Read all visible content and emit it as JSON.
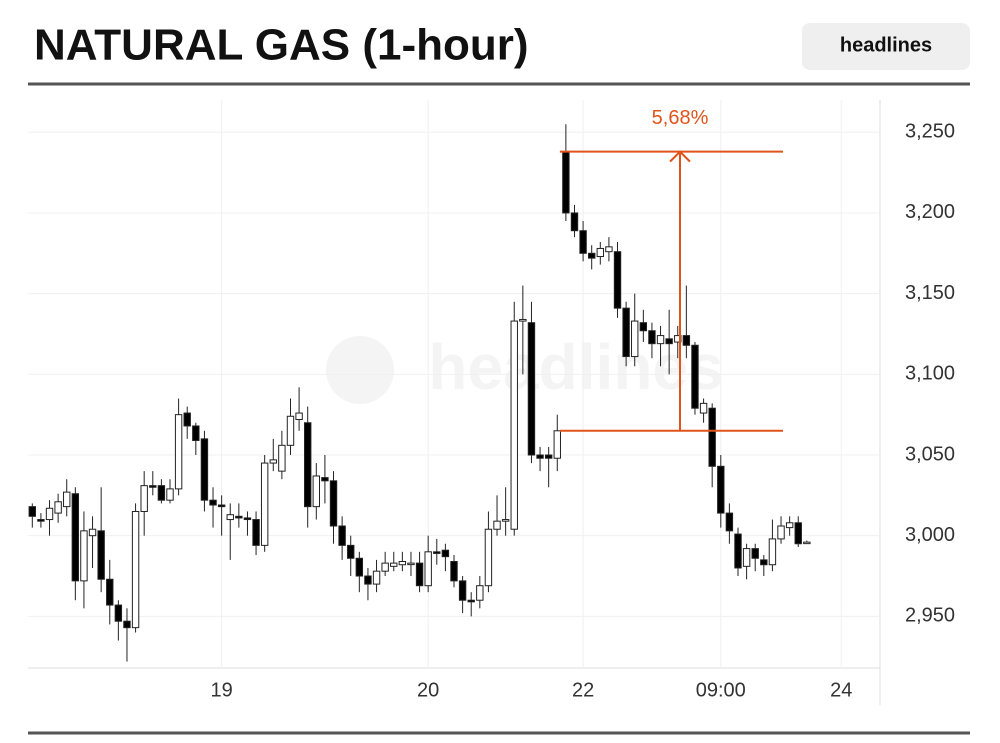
{
  "chart_data": {
    "type": "candlestick",
    "title": "NATURAL GAS (1-hour)",
    "button": "headlines",
    "watermark": "headlines",
    "categories": [
      null,
      null,
      null,
      null,
      null,
      null,
      null,
      null,
      null,
      null,
      null,
      null,
      null,
      null,
      null,
      null,
      null,
      null,
      null,
      null,
      null,
      null,
      "19",
      null,
      null,
      null,
      null,
      null,
      null,
      null,
      null,
      null,
      null,
      null,
      null,
      null,
      null,
      null,
      null,
      null,
      null,
      null,
      null,
      null,
      null,
      null,
      "20",
      null,
      null,
      null,
      null,
      null,
      null,
      null,
      null,
      null,
      null,
      null,
      null,
      null,
      null,
      null,
      null,
      null,
      "22",
      null,
      null,
      null,
      null,
      null,
      null,
      null,
      null,
      null,
      null,
      null,
      null,
      null,
      null,
      null,
      "09:00",
      null,
      null,
      null,
      null,
      null,
      null,
      null,
      null,
      null,
      null,
      null,
      null,
      null,
      "24",
      null,
      null,
      null,
      null
    ],
    "open": [
      3018,
      3010,
      3010,
      3014,
      3018,
      3026,
      2972,
      3000,
      3003,
      2973,
      2957,
      2947,
      2943,
      3015,
      3031,
      3031,
      3022,
      3029,
      3076,
      3068,
      3060,
      3022,
      3019,
      3010,
      3012,
      3011,
      3010,
      2994,
      3045,
      3040,
      3056,
      3072,
      3070,
      3018,
      3036,
      3034,
      3006,
      2994,
      2986,
      2975,
      2970,
      2978,
      2981,
      2982,
      2983,
      2983,
      2969,
      2990,
      2991,
      2984,
      2972,
      2960,
      2960,
      2969,
      3004,
      3009,
      3004,
      3133,
      3132,
      3050,
      3050,
      3048,
      3238,
      3200,
      3189,
      3175,
      3173,
      3176,
      3176,
      3141,
      3111,
      3132,
      3127,
      3119,
      3122,
      3120,
      3124,
      3118,
      3076,
      3079,
      3043,
      3014,
      3001,
      2981,
      2992,
      2985,
      2982,
      2998,
      3005,
      3008,
      2996,
      null,
      null,
      null,
      null,
      null,
      null,
      null,
      null
    ],
    "close": [
      3012,
      3009,
      3017,
      3021,
      3027,
      2972,
      3003,
      3004,
      2973,
      2957,
      2947,
      2943,
      3015,
      3031,
      3030,
      3022,
      3029,
      3075,
      3068,
      3059,
      3022,
      3019,
      3018,
      3013,
      3011,
      3010,
      2994,
      3045,
      3047,
      3056,
      3074,
      3076,
      3018,
      3037,
      3034,
      3006,
      2994,
      2986,
      2975,
      2970,
      2978,
      2983,
      2983,
      2984,
      2983,
      2969,
      2990,
      2989,
      2987,
      2972,
      2960,
      2959,
      2969,
      3004,
      3009,
      3010,
      3133,
      3134,
      3050,
      3048,
      3048,
      3065,
      3200,
      3189,
      3175,
      3172,
      3178,
      3179,
      3141,
      3111,
      3133,
      3127,
      3119,
      3124,
      3119,
      3124,
      3118,
      3079,
      3082,
      3043,
      3014,
      3003,
      2980,
      2992,
      2986,
      2982,
      2998,
      3006,
      3008,
      2995,
      2996,
      null,
      null,
      null,
      null,
      null,
      null,
      null,
      null
    ],
    "high": [
      3020,
      3014,
      3022,
      3026,
      3035,
      3030,
      3015,
      3012,
      3030,
      2985,
      2960,
      2955,
      3020,
      3040,
      3040,
      3035,
      3035,
      3085,
      3080,
      3070,
      3065,
      3030,
      3025,
      3020,
      3020,
      3015,
      3015,
      3050,
      3060,
      3065,
      3085,
      3092,
      3080,
      3045,
      3050,
      3040,
      3012,
      3000,
      2990,
      2980,
      2985,
      2990,
      2990,
      2990,
      2990,
      2990,
      3000,
      2998,
      2995,
      2988,
      2975,
      2965,
      2975,
      3015,
      3025,
      3030,
      3145,
      3155,
      3145,
      3055,
      3055,
      3075,
      3255,
      3205,
      3195,
      3180,
      3182,
      3185,
      3182,
      3145,
      3150,
      3140,
      3132,
      3130,
      3140,
      3130,
      3155,
      3120,
      3085,
      3082,
      3050,
      3020,
      3005,
      2995,
      2995,
      2988,
      3010,
      3012,
      3012,
      3012,
      2997,
      null,
      null,
      null,
      null,
      null,
      null,
      null,
      null
    ],
    "low": [
      3005,
      3005,
      3000,
      3008,
      3012,
      2960,
      2955,
      2980,
      2965,
      2945,
      2935,
      2922,
      2940,
      3000,
      3025,
      3020,
      3020,
      3025,
      3060,
      3050,
      3015,
      3005,
      3000,
      2985,
      3005,
      3000,
      2988,
      2990,
      3040,
      3035,
      3050,
      3065,
      3005,
      3010,
      3020,
      2995,
      2985,
      2975,
      2965,
      2960,
      2965,
      2975,
      2978,
      2978,
      2975,
      2965,
      2965,
      2982,
      2978,
      2968,
      2952,
      2950,
      2955,
      2965,
      3000,
      3000,
      3000,
      3100,
      3045,
      3040,
      3030,
      3040,
      3195,
      3185,
      3170,
      3165,
      3168,
      3170,
      3135,
      3105,
      3105,
      3120,
      3110,
      3105,
      3100,
      3110,
      3110,
      3075,
      3070,
      3030,
      3005,
      2995,
      2975,
      2973,
      2978,
      2975,
      2978,
      2995,
      3000,
      2993,
      2995,
      null,
      null,
      null,
      null,
      null,
      null,
      null,
      null
    ],
    "up_color": "#ffffff",
    "down_color": "#000000",
    "ylim": [
      2918,
      3270
    ],
    "yticks": [
      {
        "value": 2950,
        "label": "2,950"
      },
      {
        "value": 3000,
        "label": "3,000"
      },
      {
        "value": 3050,
        "label": "3,050"
      },
      {
        "value": 3100,
        "label": "3,100"
      },
      {
        "value": 3150,
        "label": "3,150"
      },
      {
        "value": 3200,
        "label": "3,200"
      },
      {
        "value": 3250,
        "label": "3,250"
      }
    ],
    "grid": true,
    "annotation": {
      "text": "5,68%",
      "from": 3065,
      "to": 3238,
      "color": "#e0541c"
    }
  }
}
